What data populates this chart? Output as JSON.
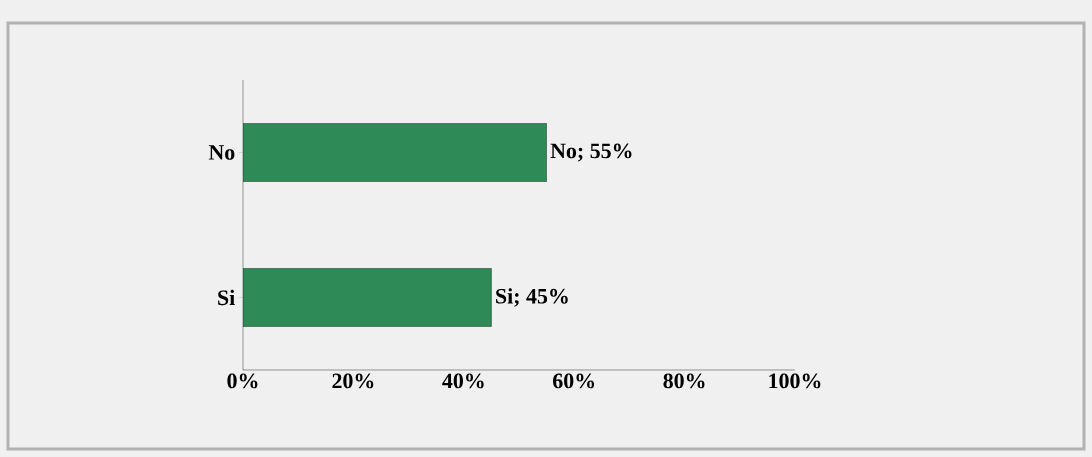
{
  "chart_data": {
    "type": "bar",
    "orientation": "horizontal",
    "categories": [
      "No",
      "Si"
    ],
    "values": [
      55,
      45
    ],
    "color": "#2e8b57",
    "value_labels": [
      "No; 55%",
      "Si; 45%"
    ],
    "xlim": [
      0,
      100
    ],
    "xticks": [
      {
        "value": 0,
        "label": "0%"
      },
      {
        "value": 20,
        "label": "20%"
      },
      {
        "value": 40,
        "label": "40%"
      },
      {
        "value": 60,
        "label": "60%"
      },
      {
        "value": 80,
        "label": "80%"
      },
      {
        "value": 100,
        "label": "100%"
      }
    ],
    "grid": false
  }
}
